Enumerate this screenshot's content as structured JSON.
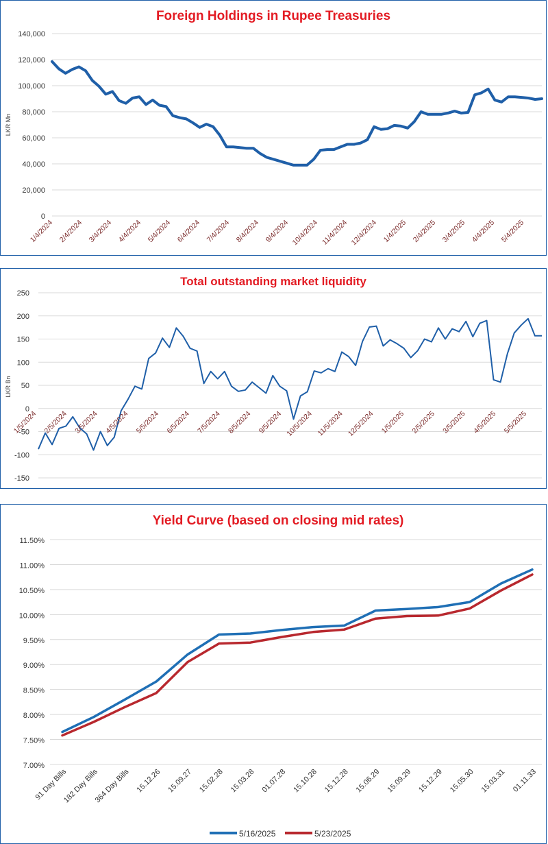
{
  "chart_data": [
    {
      "type": "line",
      "title": "Foreign Holdings in Rupee Treasuries",
      "ylabel": "LKR Mn",
      "ylim": [
        0,
        140000
      ],
      "yticks": [
        "0",
        "20,000",
        "40,000",
        "60,000",
        "80,000",
        "100,000",
        "120,000",
        "140,000"
      ],
      "xtick_labels": [
        "1/4/2024",
        "2/4/2024",
        "3/4/2024",
        "4/4/2024",
        "5/4/2024",
        "6/4/2024",
        "7/4/2024",
        "8/4/2024",
        "9/4/2024",
        "10/4/2024",
        "11/4/2024",
        "12/4/2024",
        "1/4/2025",
        "2/4/2025",
        "3/4/2025",
        "4/4/2025",
        "5/4/2025"
      ],
      "series": [
        {
          "color": "#1f5fa8",
          "values": [
            118500,
            113000,
            109500,
            112500,
            114500,
            111500,
            104000,
            99500,
            93500,
            95500,
            88500,
            86500,
            90500,
            91500,
            85500,
            89000,
            85000,
            84000,
            77000,
            75500,
            74500,
            71500,
            68000,
            70500,
            68500,
            62000,
            53000,
            53000,
            52500,
            52000,
            52000,
            48000,
            45000,
            43500,
            42000,
            40500,
            39000,
            39000,
            39000,
            43500,
            50500,
            51000,
            51000,
            53000,
            55000,
            55000,
            56000,
            58500,
            68500,
            66500,
            67000,
            69500,
            69000,
            67500,
            72500,
            80000,
            78000,
            78000,
            78000,
            79000,
            80500,
            79000,
            79500,
            93000,
            94500,
            97500,
            89000,
            87500,
            91500,
            91500,
            91000,
            90500,
            89500,
            90000
          ]
        }
      ]
    },
    {
      "type": "line",
      "title": "Total outstanding market liquidity",
      "ylabel": "LKR Bn",
      "ylim": [
        -150,
        250
      ],
      "yticks": [
        "-150",
        "-100",
        "-50",
        "0",
        "50",
        "100",
        "150",
        "200",
        "250"
      ],
      "xtick_labels": [
        "1/5/2024",
        "2/5/2024",
        "3/5/2024",
        "4/5/2024",
        "5/5/2024",
        "6/5/2024",
        "7/5/2024",
        "8/5/2024",
        "9/5/2024",
        "10/5/2024",
        "11/5/2024",
        "12/5/2024",
        "1/5/2025",
        "2/5/2025",
        "3/5/2025",
        "4/5/2025",
        "5/5/2025"
      ],
      "series": [
        {
          "color": "#1f5fa8",
          "values": [
            -88,
            -53,
            -78,
            -43,
            -38,
            -18,
            -42,
            -55,
            -90,
            -50,
            -80,
            -62,
            -5,
            20,
            48,
            42,
            108,
            120,
            152,
            132,
            174,
            156,
            130,
            124,
            54,
            80,
            64,
            80,
            48,
            37,
            40,
            57,
            45,
            33,
            71,
            48,
            38,
            -23,
            27,
            36,
            81,
            77,
            86,
            80,
            122,
            112,
            93,
            145,
            176,
            178,
            135,
            148,
            140,
            130,
            110,
            125,
            150,
            144,
            174,
            150,
            172,
            166,
            188,
            155,
            184,
            190,
            62,
            57,
            118,
            163,
            180,
            194,
            157,
            157
          ]
        }
      ]
    },
    {
      "type": "line",
      "title": "Yield Curve (based on closing mid rates)",
      "ylim": [
        7.0,
        11.5
      ],
      "yticks": [
        "7.00%",
        "7.50%",
        "8.00%",
        "8.50%",
        "9.00%",
        "9.50%",
        "10.00%",
        "10.50%",
        "11.00%",
        "11.50%"
      ],
      "categories": [
        "91 Day Bills",
        "182 Day Bills",
        "364 Day Bills",
        "15.12.26",
        "15.09.27",
        "15.02.28",
        "15.03.28",
        "01.07.28",
        "15.10.28",
        "15.12.28",
        "15.06.29",
        "15.09.29",
        "15.12.29",
        "15.05.30",
        "15.03.31",
        "01.11.33"
      ],
      "series": [
        {
          "name": "5/16/2025",
          "color": "#1f6fb5",
          "values": [
            7.65,
            7.95,
            8.3,
            8.66,
            9.2,
            9.6,
            9.62,
            9.69,
            9.75,
            9.78,
            10.08,
            10.11,
            10.15,
            10.25,
            10.62,
            10.9
          ]
        },
        {
          "name": "5/23/2025",
          "color": "#b8282e",
          "values": [
            7.58,
            7.85,
            8.15,
            8.43,
            9.05,
            9.42,
            9.44,
            9.55,
            9.65,
            9.7,
            9.92,
            9.97,
            9.98,
            10.12,
            10.48,
            10.8
          ]
        }
      ]
    }
  ]
}
